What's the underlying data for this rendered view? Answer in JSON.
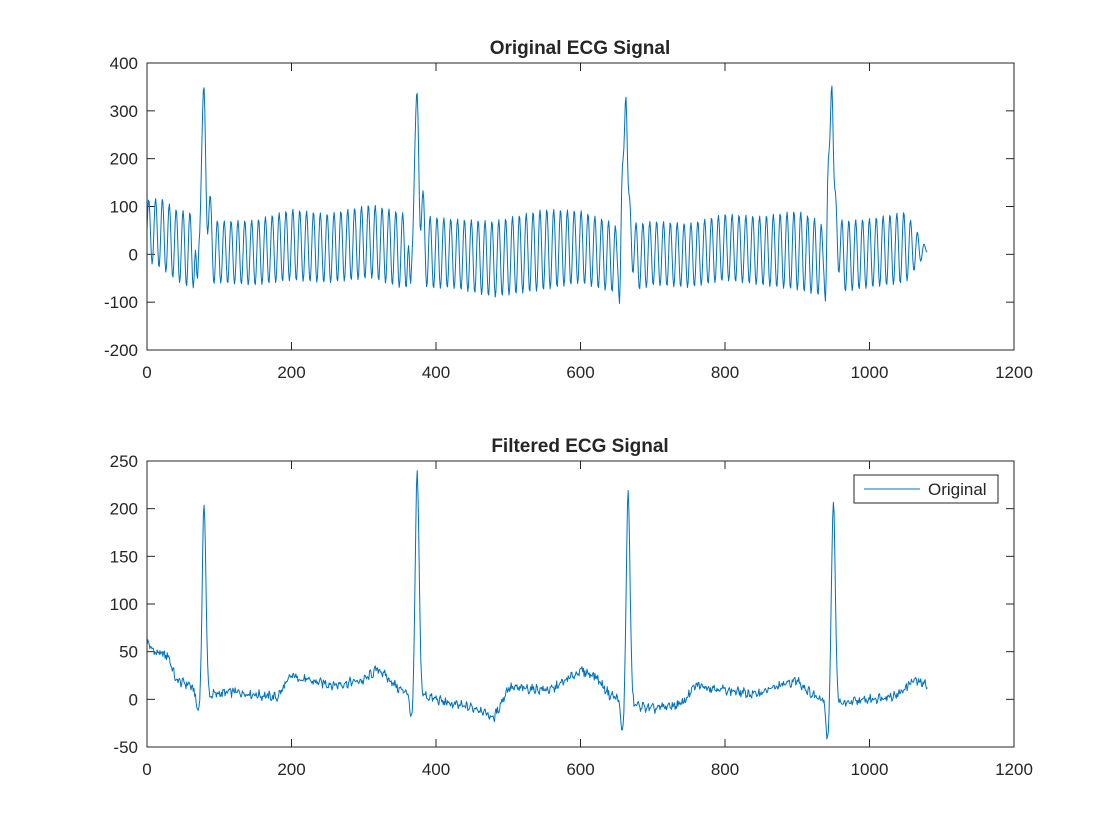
{
  "chart_data": [
    {
      "type": "line",
      "title": "Original ECG Signal",
      "xlabel": "",
      "ylabel": "",
      "xlim": [
        0,
        1200
      ],
      "ylim": [
        -200,
        400
      ],
      "xticks": [
        0,
        200,
        400,
        600,
        800,
        1000,
        1200
      ],
      "yticks": [
        -200,
        -100,
        0,
        100,
        200,
        300,
        400
      ],
      "grid": false,
      "legend": null,
      "color": "#0072BD",
      "signal": {
        "samples": 1081,
        "x_start": 0,
        "x_end": 1080,
        "cycle_period_samples": 9.5,
        "oscillation_envelope": {
          "x": [
            0,
            20,
            40,
            70,
            100,
            150,
            200,
            250,
            310,
            360,
            420,
            480,
            550,
            600,
            620,
            660,
            700,
            750,
            800,
            850,
            900,
            940,
            960,
            1000,
            1050,
            1080
          ],
          "upper": [
            115,
            118,
            95,
            85,
            70,
            72,
            95,
            85,
            105,
            85,
            75,
            70,
            95,
            92,
            80,
            60,
            70,
            65,
            85,
            80,
            92,
            65,
            70,
            75,
            90,
            10
          ],
          "lower": [
            -15,
            -30,
            -55,
            -80,
            -60,
            -65,
            -55,
            -60,
            -50,
            -75,
            -70,
            -90,
            -75,
            -60,
            -70,
            -85,
            -65,
            -70,
            -55,
            -65,
            -75,
            -90,
            -80,
            -70,
            -60,
            5
          ]
        },
        "r_peaks": [
          {
            "x": 79,
            "y": 297,
            "s_depth": -85
          },
          {
            "x": 374,
            "y": 287,
            "s_depth": -90
          },
          {
            "x": 663,
            "y": 280,
            "s_depth": -105
          },
          {
            "x": 948,
            "y": 300,
            "s_depth": -100
          }
        ]
      }
    },
    {
      "type": "line",
      "title": "Filtered ECG Signal",
      "xlabel": "",
      "ylabel": "",
      "xlim": [
        0,
        1200
      ],
      "ylim": [
        -50,
        250
      ],
      "xticks": [
        0,
        200,
        400,
        600,
        800,
        1000,
        1200
      ],
      "yticks": [
        -50,
        0,
        50,
        100,
        150,
        200,
        250
      ],
      "grid": false,
      "legend": {
        "position": "top-right",
        "entries": [
          "Original"
        ]
      },
      "color": "#0072BD",
      "signal": {
        "samples": 1081,
        "x_start": 0,
        "x_end": 1080,
        "baseline": {
          "x": [
            0,
            10,
            30,
            40,
            60,
            75,
            90,
            120,
            150,
            180,
            200,
            220,
            260,
            300,
            320,
            350,
            380,
            420,
            460,
            480,
            500,
            560,
            600,
            620,
            640,
            670,
            700,
            740,
            760,
            800,
            840,
            880,
            900,
            920,
            960,
            1000,
            1040,
            1060,
            1080
          ],
          "y": [
            60,
            50,
            45,
            20,
            15,
            -5,
            5,
            8,
            5,
            2,
            25,
            20,
            15,
            20,
            32,
            10,
            5,
            -5,
            -10,
            -20,
            12,
            10,
            30,
            25,
            5,
            -5,
            -10,
            -5,
            15,
            10,
            5,
            15,
            20,
            5,
            -5,
            0,
            5,
            20,
            15
          ]
        },
        "r_peaks": [
          {
            "x": 79,
            "y": 211,
            "q_depth": -15
          },
          {
            "x": 374,
            "y": 236,
            "q_depth": -30
          },
          {
            "x": 666,
            "y": 224,
            "q_depth": -37
          },
          {
            "x": 950,
            "y": 216,
            "q_depth": -42
          }
        ]
      }
    }
  ]
}
